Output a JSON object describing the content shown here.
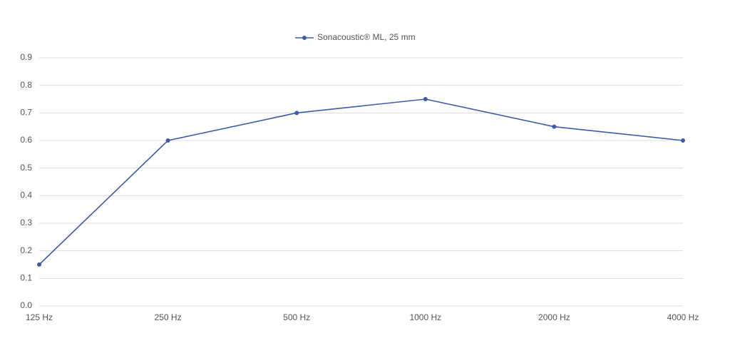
{
  "chart_data": {
    "type": "line",
    "categories": [
      "125 Hz",
      "250 Hz",
      "500 Hz",
      "1000 Hz",
      "2000 Hz",
      "4000 Hz"
    ],
    "series": [
      {
        "name": "Sonacoustic® ML, 25 mm",
        "color": "#3b5ca8",
        "values": [
          0.15,
          0.6,
          0.7,
          0.75,
          0.65,
          0.6
        ]
      }
    ],
    "ylim": [
      0,
      0.9
    ],
    "yticks": [
      {
        "value": 0,
        "label": "0.0"
      },
      0.1,
      0.2,
      0.3,
      0.4,
      0.5,
      0.6,
      0.7,
      0.8,
      0.9
    ],
    "grid": true,
    "legend": "top"
  }
}
